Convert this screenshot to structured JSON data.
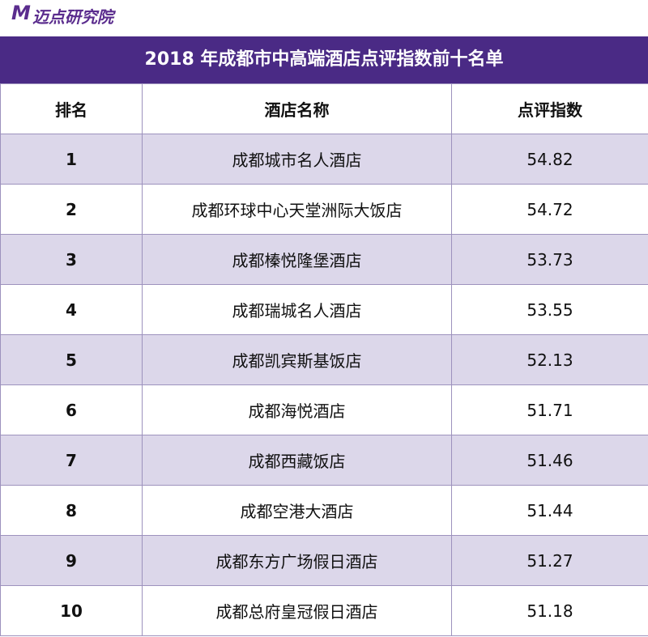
{
  "logo": {
    "mark": "M",
    "text": "迈点研究院"
  },
  "table": {
    "title": "2018 年成都市中高端酒店点评指数前十名单",
    "header": [
      "排名",
      "酒店名称",
      "点评指数"
    ],
    "rows": [
      [
        1,
        "成都城市名人酒店",
        54.82
      ],
      [
        2,
        "成都环球中心天堂洲际大饭店",
        54.72
      ],
      [
        3,
        "成都榛悦隆堡酒店",
        53.73
      ],
      [
        4,
        "成都瑞城名人酒店",
        53.55
      ],
      [
        5,
        "成都凯宾斯基饭店",
        52.13
      ],
      [
        6,
        "成都海悦酒店",
        51.71
      ],
      [
        7,
        "成都西藏饭店",
        51.46
      ],
      [
        8,
        "成都空港大酒店",
        51.44
      ],
      [
        9,
        "成都东方广场假日酒店",
        51.27
      ],
      [
        10,
        "成都总府皇冠假日酒店",
        51.18
      ]
    ]
  }
}
